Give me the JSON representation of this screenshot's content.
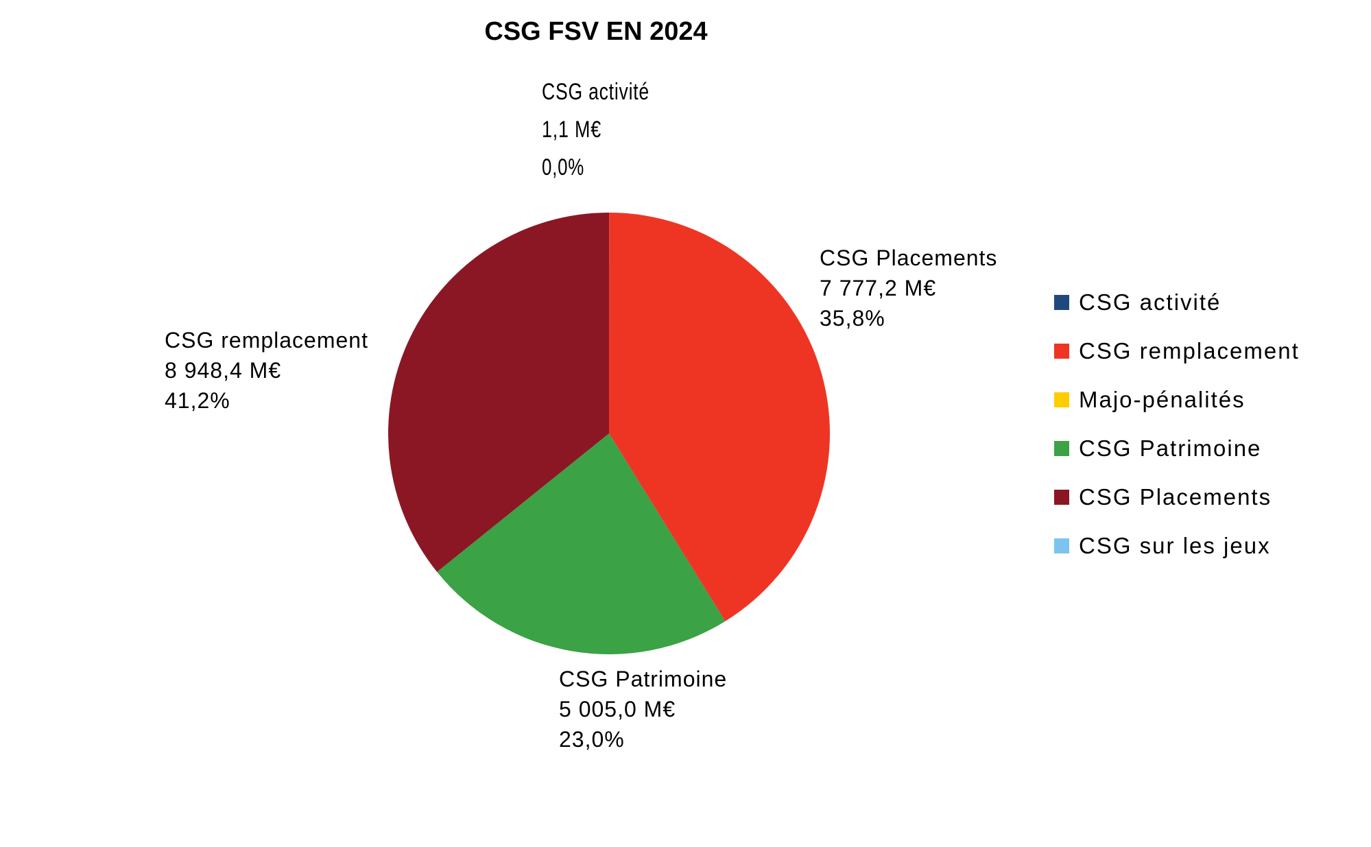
{
  "chart_data": {
    "type": "pie",
    "title": "CSG FSV EN 2024",
    "legend_position": "right",
    "slices": [
      {
        "name": "CSG activité",
        "value": 1.1,
        "value_label": "1,1 M€",
        "percent_label": "0,0%",
        "color": "#1F497D"
      },
      {
        "name": "CSG remplacement",
        "value": 8948.4,
        "value_label": "8 948,4 M€",
        "percent_label": "41,2%",
        "color": "#EE3524"
      },
      {
        "name": "Majo-pénalités",
        "value": 0,
        "value_label": "",
        "percent_label": "",
        "color": "#FFCC00"
      },
      {
        "name": "CSG Patrimoine",
        "value": 5005.0,
        "value_label": "5 005,0 M€",
        "percent_label": "23,0%",
        "color": "#3BA245"
      },
      {
        "name": "CSG Placements",
        "value": 7777.2,
        "value_label": "7 777,2 M€",
        "percent_label": "35,8%",
        "color": "#8B1724"
      },
      {
        "name": "CSG sur les jeux",
        "value": 0,
        "value_label": "",
        "percent_label": "",
        "color": "#7CC4EE"
      }
    ]
  }
}
